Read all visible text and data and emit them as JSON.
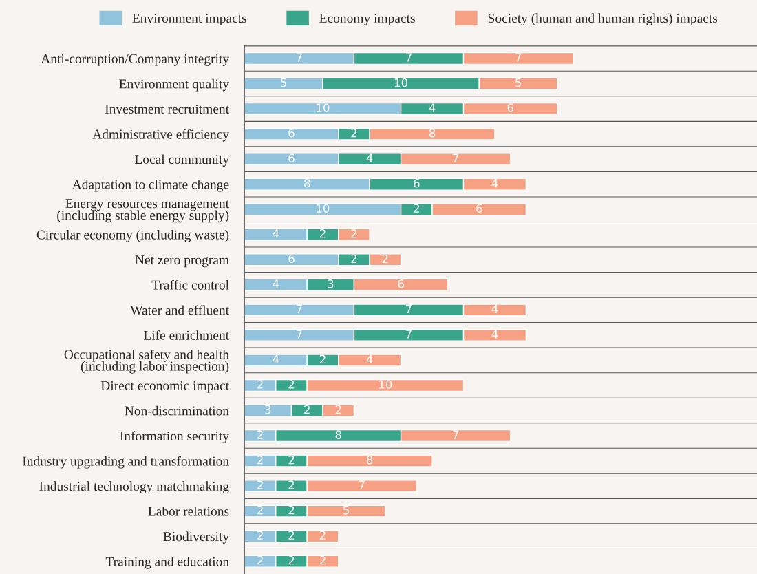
{
  "chart_data": {
    "type": "bar",
    "orientation": "horizontal",
    "stacked": true,
    "data_labels": true,
    "grid": "y",
    "legend": "top",
    "categories": [
      "Anti-corruption/Company integrity",
      "Environment quality",
      "Investment recruitment",
      "Administrative efficiency",
      "Local community",
      "Adaptation to climate change",
      "Energy resources management\n(including stable energy supply)",
      "Circular economy (including waste)",
      "Net zero program",
      "Traffic control",
      "Water and effluent",
      "Life enrichment",
      "Occupational safety and health\n(including labor inspection)",
      "Direct economic impact",
      "Non-discrimination",
      "Information security",
      "Industry upgrading and transformation",
      "Industrial technology matchmaking",
      "Labor relations",
      "Biodiversity",
      "Training and education"
    ],
    "series": [
      {
        "name": "Environment impacts",
        "color": "#92c3dc",
        "values": [
          7,
          5,
          10,
          6,
          6,
          8,
          10,
          4,
          6,
          4,
          7,
          7,
          4,
          2,
          3,
          2,
          2,
          2,
          2,
          2,
          2
        ]
      },
      {
        "name": "Economy impacts",
        "color": "#39a58b",
        "values": [
          7,
          10,
          4,
          2,
          4,
          6,
          2,
          2,
          2,
          3,
          7,
          7,
          2,
          2,
          2,
          8,
          2,
          2,
          2,
          2,
          2
        ]
      },
      {
        "name": "Society (human and human rights) impacts",
        "color": "#f6a184",
        "values": [
          7,
          5,
          6,
          8,
          7,
          4,
          6,
          2,
          2,
          6,
          4,
          4,
          4,
          10,
          2,
          7,
          8,
          7,
          5,
          2,
          2
        ]
      }
    ]
  }
}
